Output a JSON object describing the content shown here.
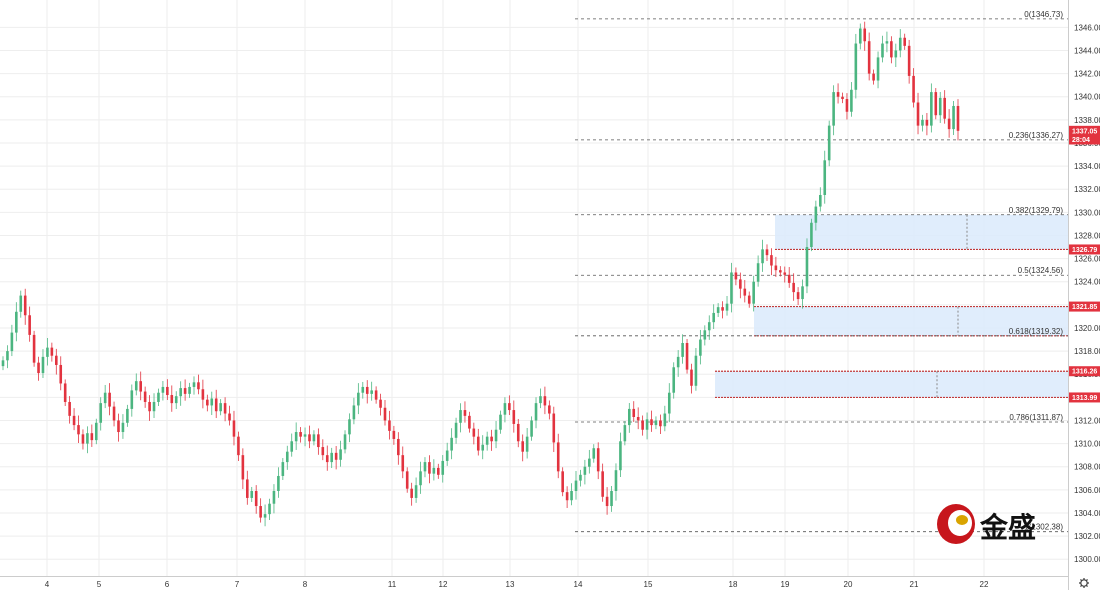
{
  "chart_data": {
    "type": "candlestick",
    "y_axis": {
      "min": 1299.5,
      "max": 1347.5,
      "ticks": [
        1300,
        1302,
        1304,
        1306,
        1308,
        1310,
        1312,
        1314,
        1316,
        1318,
        1320,
        1322,
        1324,
        1326,
        1328,
        1330,
        1332,
        1334,
        1336,
        1338,
        1340,
        1342,
        1344,
        1346
      ],
      "tick_labels": [
        "1300.00",
        "1302.00",
        "1304.00",
        "1306.00",
        "1308.00",
        "1310.00",
        "1312.00",
        "1314.00",
        "1316.00",
        "1318.00",
        "1320.00",
        "1322.00",
        "1324.00",
        "1326.00",
        "1328.00",
        "1330.00",
        "1332.00",
        "1334.00",
        "1336.00",
        "1338.00",
        "1340.00",
        "1342.00",
        "1344.00",
        "1346.00"
      ]
    },
    "x_axis": {
      "labels": [
        "4",
        "5",
        "6",
        "7",
        "8",
        "11",
        "12",
        "13",
        "14",
        "15",
        "18",
        "19",
        "20",
        "21",
        "22"
      ]
    },
    "fib_levels": [
      {
        "label": "0(1346.73)",
        "value": 1346.73
      },
      {
        "label": "0.236(1336.27)",
        "value": 1336.27
      },
      {
        "label": "0.382(1329.79)",
        "value": 1329.79
      },
      {
        "label": "0.5(1324.56)",
        "value": 1324.56
      },
      {
        "label": "0.618(1319.32)",
        "value": 1319.32
      },
      {
        "label": "0.786(1311.87)",
        "value": 1311.87
      },
      {
        "label": "1(1302.38)",
        "value": 1302.38
      }
    ],
    "zones": [
      {
        "top": 1329.79,
        "bottom": 1326.79
      },
      {
        "top": 1321.85,
        "bottom": 1319.32
      },
      {
        "top": 1316.26,
        "bottom": 1313.99
      }
    ],
    "price_tags": [
      {
        "label": "1337.05",
        "value": 1337.05,
        "color": "#e2333f"
      },
      {
        "label": "28:04",
        "value": 1336.3,
        "color": "#e2333f"
      },
      {
        "label": "1326.79",
        "value": 1326.79,
        "color": "#e2333f"
      },
      {
        "label": "1321.85",
        "value": 1321.85,
        "color": "#e2333f"
      },
      {
        "label": "1316.26",
        "value": 1316.26,
        "color": "#e2333f"
      },
      {
        "label": "1313.99",
        "value": 1313.99,
        "color": "#e2333f"
      }
    ],
    "colors": {
      "up": "#4bb580",
      "down": "#e2333f",
      "zone_fill": "#dbeafb",
      "zone_line": "#c23a3a",
      "fib_line": "#555555",
      "grid": "#eeeeee"
    },
    "closes": [
      1317.2,
      1318.0,
      1319.6,
      1321.4,
      1322.8,
      1321.1,
      1319.4,
      1317.0,
      1316.1,
      1317.5,
      1318.3,
      1317.6,
      1316.8,
      1315.2,
      1313.6,
      1312.4,
      1311.6,
      1310.8,
      1310.0,
      1310.9,
      1310.3,
      1311.8,
      1313.5,
      1314.4,
      1313.2,
      1312.0,
      1311.0,
      1311.8,
      1313.0,
      1314.6,
      1315.4,
      1314.5,
      1313.6,
      1312.8,
      1313.6,
      1314.4,
      1314.9,
      1314.2,
      1313.5,
      1314.1,
      1314.8,
      1314.3,
      1314.9,
      1315.3,
      1314.7,
      1313.8,
      1313.3,
      1313.9,
      1312.8,
      1313.5,
      1312.6,
      1312.0,
      1310.6,
      1309.0,
      1306.9,
      1305.3,
      1305.9,
      1304.6,
      1303.6,
      1303.9,
      1304.8,
      1305.9,
      1307.2,
      1308.4,
      1309.3,
      1310.2,
      1311.0,
      1310.6,
      1310.8,
      1310.2,
      1310.8,
      1309.7,
      1309.0,
      1308.4,
      1309.2,
      1308.6,
      1309.5,
      1310.8,
      1312.1,
      1313.3,
      1314.4,
      1314.9,
      1314.3,
      1314.6,
      1313.8,
      1313.1,
      1312.0,
      1311.1,
      1310.4,
      1309.0,
      1307.6,
      1306.1,
      1305.3,
      1306.4,
      1307.6,
      1308.4,
      1307.4,
      1307.9,
      1307.3,
      1308.5,
      1309.4,
      1310.5,
      1311.8,
      1312.9,
      1312.4,
      1311.3,
      1310.6,
      1309.4,
      1309.9,
      1310.6,
      1310.2,
      1311.2,
      1312.5,
      1313.5,
      1312.9,
      1311.7,
      1310.2,
      1309.3,
      1310.6,
      1312.0,
      1313.5,
      1314.1,
      1313.3,
      1312.6,
      1310.1,
      1307.6,
      1305.8,
      1305.1,
      1305.9,
      1306.8,
      1307.3,
      1308.0,
      1308.7,
      1309.6,
      1307.6,
      1305.4,
      1304.6,
      1305.9,
      1307.7,
      1310.2,
      1311.6,
      1313.0,
      1312.3,
      1312.0,
      1311.2,
      1312.1,
      1311.6,
      1312.0,
      1311.5,
      1312.6,
      1314.4,
      1316.6,
      1317.5,
      1318.7,
      1316.4,
      1315.0,
      1317.6,
      1319.0,
      1319.8,
      1320.5,
      1321.3,
      1321.8,
      1321.5,
      1322.1,
      1324.8,
      1324.2,
      1323.4,
      1322.8,
      1322.1,
      1324.0,
      1325.6,
      1326.8,
      1326.3,
      1325.4,
      1325.0,
      1324.8,
      1324.6,
      1323.9,
      1323.1,
      1322.5,
      1323.6,
      1327.0,
      1329.1,
      1330.5,
      1331.5,
      1334.5,
      1337.5,
      1340.4,
      1340.0,
      1339.8,
      1338.7,
      1340.6,
      1344.6,
      1345.9,
      1344.8,
      1342.0,
      1341.4,
      1343.4,
      1344.6,
      1344.8,
      1343.4,
      1344.0,
      1345.1,
      1344.4,
      1341.8,
      1339.5,
      1337.5,
      1338.0,
      1337.5,
      1340.4,
      1338.4,
      1339.9,
      1338.1,
      1337.2,
      1339.2,
      1337.05
    ]
  }
}
